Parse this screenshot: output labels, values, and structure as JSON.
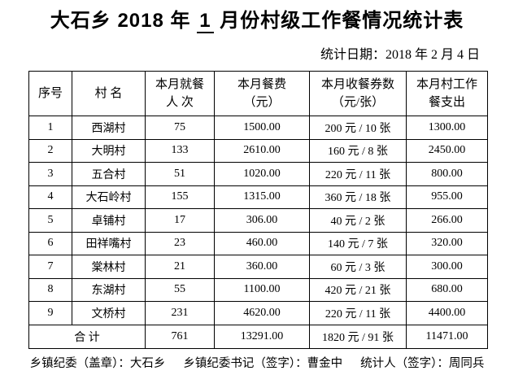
{
  "page": {
    "title_prefix": "大石乡 2018 年 ",
    "title_month": "1",
    "title_suffix": " 月份村级工作餐情况统计表",
    "date_label": "统计日期：2018 年 2 月 4 日"
  },
  "table": {
    "headers": [
      {
        "line1": "序号",
        "line2": ""
      },
      {
        "line1": "村  名",
        "line2": ""
      },
      {
        "line1": "本月就餐",
        "line2": "人 次"
      },
      {
        "line1": "本月餐费",
        "line2": "（元）"
      },
      {
        "line1": "本月收餐券数",
        "line2": "（元/张）"
      },
      {
        "line1": "本月村工作",
        "line2": "餐支出"
      }
    ],
    "rows": [
      [
        "1",
        "西湖村",
        "75",
        "1500.00",
        "200 元 / 10 张",
        "1300.00"
      ],
      [
        "2",
        "大明村",
        "133",
        "2610.00",
        "160 元 / 8 张",
        "2450.00"
      ],
      [
        "3",
        "五合村",
        "51",
        "1020.00",
        "220 元 / 11 张",
        "800.00"
      ],
      [
        "4",
        "大石岭村",
        "155",
        "1315.00",
        "360 元 / 18 张",
        "955.00"
      ],
      [
        "5",
        "卓铺村",
        "17",
        "306.00",
        "40 元 / 2 张",
        "266.00"
      ],
      [
        "6",
        "田祥嘴村",
        "23",
        "460.00",
        "140 元 / 7 张",
        "320.00"
      ],
      [
        "7",
        "棠林村",
        "21",
        "360.00",
        "60 元 / 3 张",
        "300.00"
      ],
      [
        "8",
        "东湖村",
        "55",
        "1100.00",
        "420 元 / 21 张",
        "680.00"
      ],
      [
        "9",
        "文桥村",
        "231",
        "4620.00",
        "220 元 / 11 张",
        "4400.00"
      ]
    ],
    "total_row": {
      "label": "合  计",
      "values": [
        "761",
        "13291.00",
        "1820 元 / 91 张",
        "11471.00"
      ]
    }
  },
  "footer": {
    "committee_seal": "乡镇纪委（盖章）：大石乡",
    "secretary_sign": "乡镇纪委书记（签字）：曹金中",
    "statistician_sign": "统计人（签字）：周同兵"
  }
}
